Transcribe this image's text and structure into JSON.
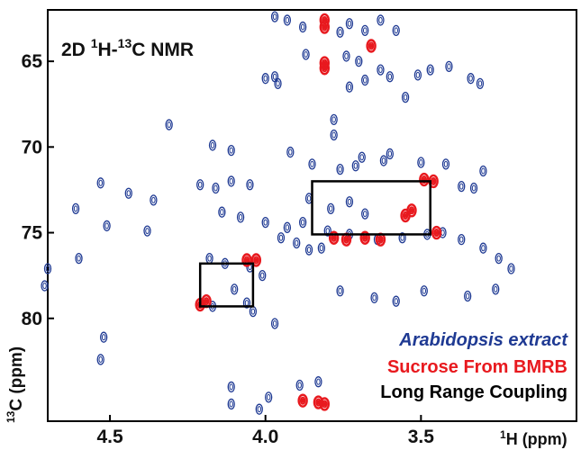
{
  "chart_data": {
    "type": "scatter",
    "title_parts": {
      "a": "2D ",
      "b": "1",
      "c": "H-",
      "d": "13",
      "e": "C NMR"
    },
    "xlabel_parts": {
      "sup": "1",
      "main": "H (ppm)"
    },
    "ylabel_parts": {
      "sup": "13",
      "main": "C (ppm)"
    },
    "xlim": [
      4.7,
      3.0
    ],
    "ylim": [
      62,
      86
    ],
    "x_ticks": [
      4.5,
      4.0,
      3.5
    ],
    "x_tick_labels": [
      "4.5",
      "4.0",
      "3.5"
    ],
    "y_ticks": [
      65,
      70,
      75,
      80
    ],
    "y_tick_labels": [
      "65",
      "70",
      "75",
      "80"
    ],
    "colors": {
      "extract": "#1f3a93",
      "sucrose": "#e8191e",
      "coupling": "#000000"
    },
    "legend": [
      {
        "label": "Arabidopsis extract",
        "color": "#1f3a93",
        "italic": true
      },
      {
        "label": "Sucrose From BMRB",
        "color": "#e8191e",
        "italic": false
      },
      {
        "label": "Long Range Coupling",
        "color": "#000000",
        "italic": false
      }
    ],
    "series": [
      {
        "name": "Arabidopsis extract",
        "color": "#1f3a93",
        "points": [
          [
            3.97,
            62.4
          ],
          [
            3.93,
            62.6
          ],
          [
            3.88,
            63.0
          ],
          [
            3.73,
            62.8
          ],
          [
            3.76,
            63.3
          ],
          [
            3.68,
            63.2
          ],
          [
            3.63,
            62.6
          ],
          [
            3.58,
            63.2
          ],
          [
            3.87,
            64.6
          ],
          [
            3.74,
            64.7
          ],
          [
            3.7,
            65.0
          ],
          [
            3.63,
            65.5
          ],
          [
            3.6,
            65.9
          ],
          [
            3.51,
            65.8
          ],
          [
            3.47,
            65.5
          ],
          [
            3.41,
            65.3
          ],
          [
            3.73,
            66.5
          ],
          [
            3.68,
            66.1
          ],
          [
            3.96,
            66.3
          ],
          [
            3.97,
            65.9
          ],
          [
            4.0,
            66.0
          ],
          [
            3.55,
            67.1
          ],
          [
            3.31,
            66.3
          ],
          [
            3.34,
            66.0
          ],
          [
            4.31,
            68.7
          ],
          [
            3.78,
            68.4
          ],
          [
            3.78,
            69.3
          ],
          [
            4.17,
            69.9
          ],
          [
            4.11,
            70.2
          ],
          [
            3.92,
            70.3
          ],
          [
            3.69,
            70.6
          ],
          [
            3.6,
            70.4
          ],
          [
            3.5,
            70.9
          ],
          [
            3.42,
            71.0
          ],
          [
            3.3,
            71.4
          ],
          [
            3.85,
            71.0
          ],
          [
            3.76,
            71.3
          ],
          [
            3.71,
            71.1
          ],
          [
            3.62,
            70.8
          ],
          [
            4.21,
            72.2
          ],
          [
            4.16,
            72.4
          ],
          [
            4.11,
            72.0
          ],
          [
            4.05,
            72.2
          ],
          [
            4.53,
            72.1
          ],
          [
            4.61,
            73.6
          ],
          [
            4.44,
            72.7
          ],
          [
            4.36,
            73.1
          ],
          [
            4.51,
            74.6
          ],
          [
            4.38,
            74.9
          ],
          [
            4.14,
            73.8
          ],
          [
            4.08,
            74.1
          ],
          [
            4.0,
            74.4
          ],
          [
            3.93,
            74.7
          ],
          [
            3.88,
            74.4
          ],
          [
            3.86,
            73.0
          ],
          [
            3.79,
            73.6
          ],
          [
            3.73,
            73.2
          ],
          [
            3.68,
            73.9
          ],
          [
            3.8,
            74.9
          ],
          [
            3.73,
            75.1
          ],
          [
            3.64,
            75.4
          ],
          [
            3.56,
            75.3
          ],
          [
            3.48,
            75.1
          ],
          [
            3.43,
            75.0
          ],
          [
            3.37,
            75.4
          ],
          [
            3.33,
            72.4
          ],
          [
            3.37,
            72.3
          ],
          [
            3.86,
            76.0
          ],
          [
            3.82,
            75.9
          ],
          [
            3.9,
            75.6
          ],
          [
            3.95,
            75.3
          ],
          [
            4.6,
            76.5
          ],
          [
            4.18,
            76.5
          ],
          [
            4.13,
            76.8
          ],
          [
            4.05,
            77.0
          ],
          [
            4.1,
            78.3
          ],
          [
            4.17,
            79.3
          ],
          [
            4.01,
            77.5
          ],
          [
            4.7,
            77.1
          ],
          [
            4.71,
            78.1
          ],
          [
            3.76,
            78.4
          ],
          [
            3.65,
            78.8
          ],
          [
            3.58,
            79.0
          ],
          [
            3.49,
            78.4
          ],
          [
            3.35,
            78.7
          ],
          [
            3.26,
            78.3
          ],
          [
            3.25,
            76.5
          ],
          [
            3.21,
            77.1
          ],
          [
            3.3,
            75.9
          ],
          [
            4.06,
            79.1
          ],
          [
            4.04,
            79.6
          ],
          [
            3.97,
            80.3
          ],
          [
            4.52,
            81.1
          ],
          [
            4.53,
            82.4
          ],
          [
            3.83,
            83.7
          ],
          [
            3.89,
            83.9
          ],
          [
            4.11,
            84.0
          ],
          [
            3.99,
            84.6
          ],
          [
            4.11,
            85.0
          ],
          [
            4.02,
            85.3
          ]
        ]
      },
      {
        "name": "Sucrose From BMRB",
        "color": "#e8191e",
        "points": [
          [
            3.81,
            62.6
          ],
          [
            3.81,
            63.0
          ],
          [
            3.66,
            64.1
          ],
          [
            3.81,
            65.1
          ],
          [
            3.81,
            65.4
          ],
          [
            3.49,
            71.9
          ],
          [
            3.46,
            72.0
          ],
          [
            3.53,
            73.7
          ],
          [
            3.55,
            74.0
          ],
          [
            3.78,
            75.3
          ],
          [
            3.74,
            75.4
          ],
          [
            3.68,
            75.3
          ],
          [
            3.63,
            75.4
          ],
          [
            3.45,
            75.0
          ],
          [
            4.03,
            76.6
          ],
          [
            4.06,
            76.6
          ],
          [
            4.19,
            79.0
          ],
          [
            4.21,
            79.2
          ],
          [
            3.88,
            84.8
          ],
          [
            3.83,
            84.9
          ],
          [
            3.81,
            85.0
          ]
        ]
      }
    ],
    "boxes": [
      {
        "name": "Long Range Coupling",
        "x": [
          3.85,
          3.47
        ],
        "y": [
          72.0,
          75.1
        ]
      },
      {
        "name": "Long Range Coupling",
        "x": [
          4.21,
          4.04
        ],
        "y": [
          76.8,
          79.3
        ]
      }
    ]
  }
}
